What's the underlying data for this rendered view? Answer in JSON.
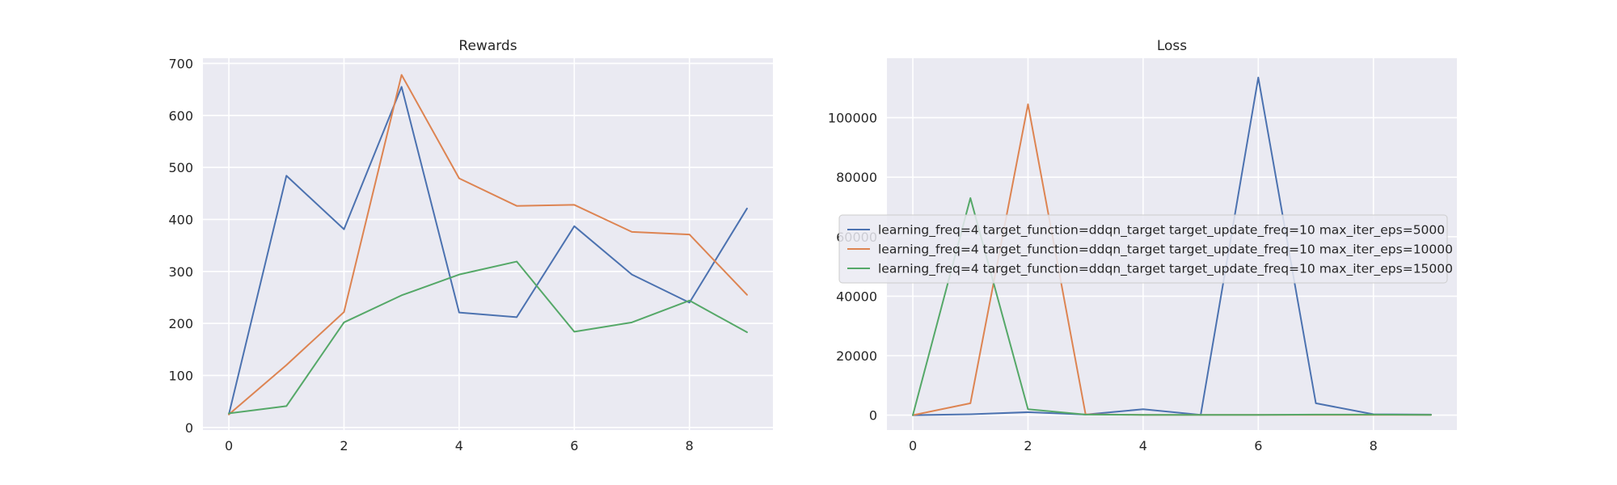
{
  "chart_data": [
    {
      "type": "line",
      "title": "Rewards",
      "xlabel": "",
      "ylabel": "",
      "x": [
        0,
        1,
        2,
        3,
        4,
        5,
        6,
        7,
        8,
        9
      ],
      "xticks": [
        0,
        2,
        4,
        6,
        8
      ],
      "yticks": [
        0,
        100,
        200,
        300,
        400,
        500,
        600,
        700
      ],
      "xlim": [
        -0.45,
        9.45
      ],
      "ylim": [
        -5,
        710
      ],
      "grid": true,
      "series": [
        {
          "name": "learning_freq=4 target_function=ddqn_target target_update_freq=10 max_iter_eps=5000",
          "color": "#4c72b0",
          "values": [
            25,
            484,
            381,
            655,
            221,
            212,
            387,
            294,
            240,
            421
          ]
        },
        {
          "name": "learning_freq=4 target_function=ddqn_target target_update_freq=10 max_iter_eps=10000",
          "color": "#dd8452",
          "values": [
            25,
            120,
            222,
            678,
            479,
            426,
            428,
            376,
            371,
            255
          ]
        },
        {
          "name": "learning_freq=4 target_function=ddqn_target target_update_freq=10 max_iter_eps=15000",
          "color": "#55a868",
          "values": [
            27,
            41,
            202,
            254,
            294,
            319,
            184,
            202,
            244,
            183
          ]
        }
      ]
    },
    {
      "type": "line",
      "title": "Loss",
      "xlabel": "",
      "ylabel": "",
      "x": [
        0,
        1,
        2,
        3,
        4,
        5,
        6,
        7,
        8,
        9
      ],
      "xticks": [
        0,
        2,
        4,
        6,
        8
      ],
      "yticks": [
        0,
        20000,
        40000,
        60000,
        80000,
        100000
      ],
      "xlim": [
        -0.45,
        9.45
      ],
      "ylim": [
        -5000,
        120000
      ],
      "grid": true,
      "legend": "center",
      "series": [
        {
          "name": "learning_freq=4 target_function=ddqn_target target_update_freq=10 max_iter_eps=5000",
          "color": "#4c72b0",
          "values": [
            0,
            300,
            1000,
            200,
            2000,
            100,
            113500,
            4000,
            300,
            200
          ]
        },
        {
          "name": "learning_freq=4 target_function=ddqn_target target_update_freq=10 max_iter_eps=10000",
          "color": "#dd8452",
          "values": [
            0,
            4000,
            104500,
            300,
            100,
            100,
            100,
            100,
            100,
            100
          ]
        },
        {
          "name": "learning_freq=4 target_function=ddqn_target target_update_freq=10 max_iter_eps=15000",
          "color": "#55a868",
          "values": [
            0,
            73000,
            2000,
            200,
            100,
            100,
            100,
            200,
            200,
            100
          ]
        }
      ]
    }
  ]
}
